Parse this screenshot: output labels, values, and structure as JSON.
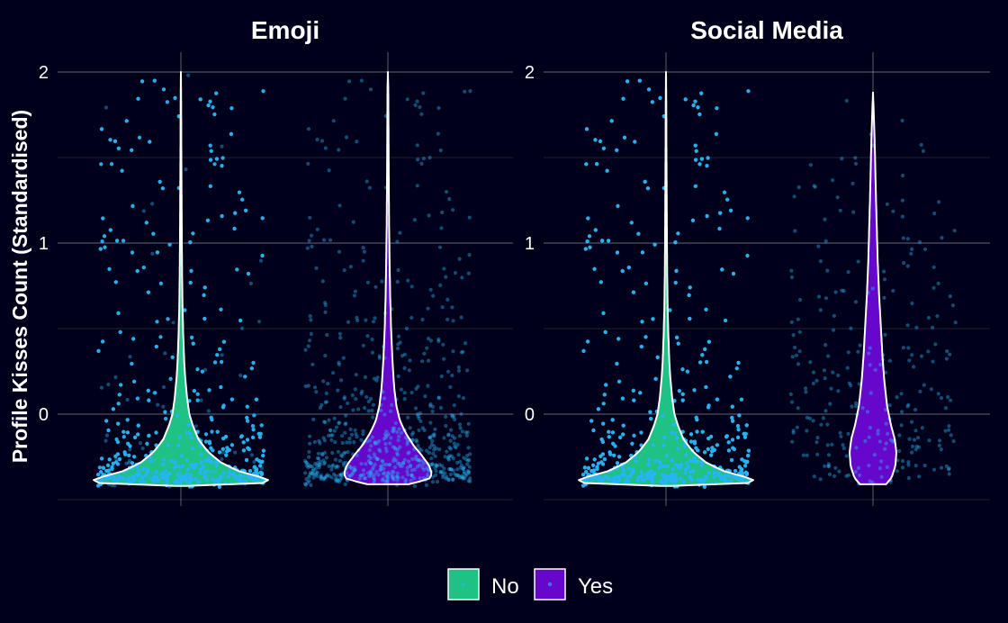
{
  "chart_data": {
    "type": "violin",
    "ylabel": "Profile Kisses Count (Standardised)",
    "xlabel": "",
    "ylim": [
      -0.5,
      2.1
    ],
    "y_ticks": [
      0,
      1,
      2
    ],
    "grid": true,
    "legend": {
      "position": "bottom",
      "items": [
        {
          "label": "No",
          "color": "#1ec285"
        },
        {
          "label": "Yes",
          "color": "#6608cc"
        }
      ]
    },
    "jitter_point_color": "#29b6f6",
    "outline_color": "#ffffff",
    "panels": [
      {
        "title": "Emoji",
        "groups": [
          {
            "label": "No",
            "fill": "#1ec285",
            "y_min": -0.42,
            "y_max": 2.0,
            "approx_count": 2600,
            "density_profile": [
              [
                -0.42,
                0.06
              ],
              [
                -0.4,
                1.0
              ],
              [
                -0.37,
                0.86
              ],
              [
                -0.33,
                0.6
              ],
              [
                -0.28,
                0.42
              ],
              [
                -0.22,
                0.29
              ],
              [
                -0.15,
                0.19
              ],
              [
                -0.07,
                0.13
              ],
              [
                0.0,
                0.09
              ],
              [
                0.1,
                0.065
              ],
              [
                0.2,
                0.048
              ],
              [
                0.3,
                0.036
              ],
              [
                0.45,
                0.026
              ],
              [
                0.6,
                0.018
              ],
              [
                0.8,
                0.013
              ],
              [
                1.0,
                0.01
              ],
              [
                1.2,
                0.008
              ],
              [
                1.4,
                0.006
              ],
              [
                1.6,
                0.004
              ],
              [
                1.8,
                0.003
              ],
              [
                2.0,
                0.0
              ]
            ]
          },
          {
            "label": "Yes",
            "fill": "#6608cc",
            "y_min": -0.41,
            "y_max": 2.0,
            "approx_count": 700,
            "density_profile": [
              [
                -0.41,
                0.22
              ],
              [
                -0.38,
                0.44
              ],
              [
                -0.35,
                0.47
              ],
              [
                -0.3,
                0.44
              ],
              [
                -0.24,
                0.36
              ],
              [
                -0.18,
                0.27
              ],
              [
                -0.11,
                0.19
              ],
              [
                -0.04,
                0.13
              ],
              [
                0.05,
                0.09
              ],
              [
                0.15,
                0.068
              ],
              [
                0.3,
                0.05
              ],
              [
                0.5,
                0.034
              ],
              [
                0.7,
                0.024
              ],
              [
                0.9,
                0.018
              ],
              [
                1.1,
                0.013
              ],
              [
                1.3,
                0.01
              ],
              [
                1.5,
                0.008
              ],
              [
                1.7,
                0.006
              ],
              [
                1.9,
                0.004
              ],
              [
                2.0,
                0.0
              ]
            ]
          }
        ]
      },
      {
        "title": "Social Media",
        "groups": [
          {
            "label": "No",
            "fill": "#1ec285",
            "y_min": -0.42,
            "y_max": 2.0,
            "approx_count": 2900,
            "density_profile": [
              [
                -0.42,
                0.06
              ],
              [
                -0.4,
                1.0
              ],
              [
                -0.37,
                0.86
              ],
              [
                -0.33,
                0.6
              ],
              [
                -0.28,
                0.42
              ],
              [
                -0.22,
                0.29
              ],
              [
                -0.15,
                0.19
              ],
              [
                -0.07,
                0.13
              ],
              [
                0.0,
                0.09
              ],
              [
                0.1,
                0.065
              ],
              [
                0.2,
                0.048
              ],
              [
                0.3,
                0.036
              ],
              [
                0.45,
                0.026
              ],
              [
                0.6,
                0.018
              ],
              [
                0.8,
                0.013
              ],
              [
                1.0,
                0.01
              ],
              [
                1.2,
                0.008
              ],
              [
                1.4,
                0.006
              ],
              [
                1.6,
                0.004
              ],
              [
                1.8,
                0.003
              ],
              [
                2.0,
                0.0
              ]
            ]
          },
          {
            "label": "Yes",
            "fill": "#6608cc",
            "y_min": -0.41,
            "y_max": 1.88,
            "approx_count": 260,
            "density_profile": [
              [
                -0.41,
                0.14
              ],
              [
                -0.37,
                0.2
              ],
              [
                -0.3,
                0.24
              ],
              [
                -0.22,
                0.25
              ],
              [
                -0.14,
                0.23
              ],
              [
                -0.06,
                0.19
              ],
              [
                0.05,
                0.15
              ],
              [
                0.2,
                0.12
              ],
              [
                0.35,
                0.1
              ],
              [
                0.5,
                0.085
              ],
              [
                0.7,
                0.065
              ],
              [
                0.9,
                0.05
              ],
              [
                1.1,
                0.04
              ],
              [
                1.3,
                0.03
              ],
              [
                1.5,
                0.022
              ],
              [
                1.7,
                0.012
              ],
              [
                1.88,
                0.0
              ]
            ]
          }
        ]
      }
    ]
  }
}
